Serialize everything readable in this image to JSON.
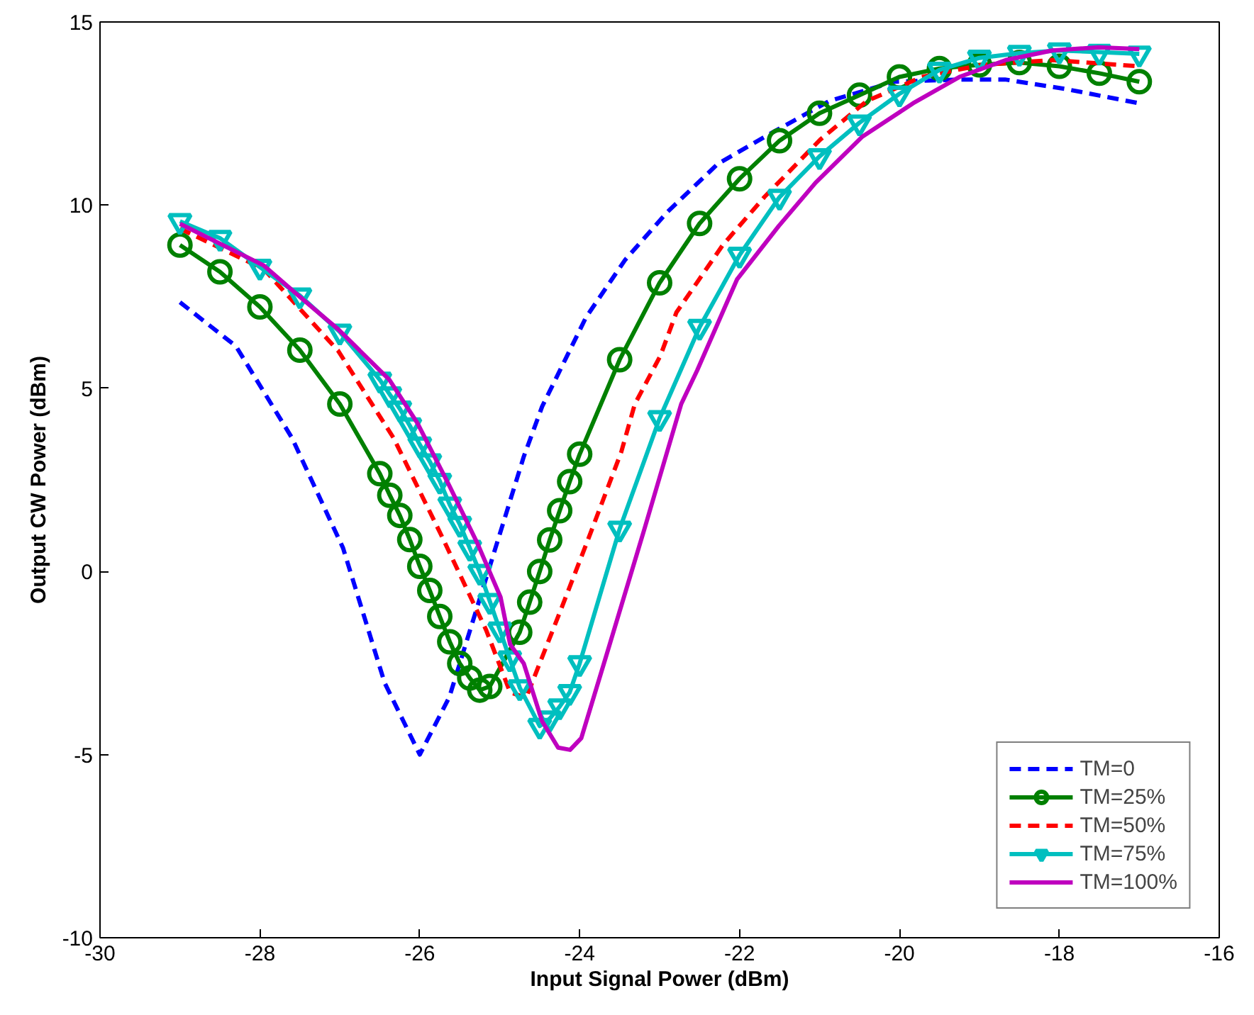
{
  "chart_data": {
    "type": "line",
    "xlabel": "Input Signal Power (dBm)",
    "ylabel": "Output CW Power (dBm)",
    "xlim": [
      -30,
      -16
    ],
    "ylim": [
      -10,
      15
    ],
    "xticks": [
      -30,
      -28,
      -26,
      -24,
      -22,
      -20,
      -18,
      -16
    ],
    "yticks": [
      -10,
      -5,
      0,
      5,
      10,
      15
    ],
    "grid": false,
    "legend": "bottom right",
    "series": [
      {
        "name": "TM=0",
        "color": "#0000ff",
        "line_style": "dashed",
        "marker": "none",
        "x": [
          -29.0,
          -28.3,
          -27.6,
          -26.96,
          -26.44,
          -26.0,
          -25.63,
          -25.11,
          -24.7,
          -24.47,
          -23.92,
          -23.43,
          -22.9,
          -22.27,
          -21.69,
          -20.88,
          -20.06,
          -19.25,
          -18.68,
          -17.92,
          -17.0
        ],
        "values": [
          7.35,
          6.15,
          3.65,
          0.64,
          -3.04,
          -5.0,
          -3.43,
          0.24,
          3.13,
          4.5,
          6.94,
          8.51,
          9.82,
          11.13,
          11.86,
          12.84,
          13.37,
          13.43,
          13.43,
          13.17,
          12.78
        ]
      },
      {
        "name": "TM=25%",
        "color": "#008000",
        "line_style": "solid",
        "marker": "circle",
        "x": [
          -29.0,
          -28.5,
          -28.0,
          -27.5,
          -27.0,
          -26.5,
          -26.375,
          -26.25,
          -26.125,
          -26.0,
          -25.875,
          -25.75,
          -25.625,
          -25.5,
          -25.375,
          -25.25,
          -25.125,
          -24.75,
          -24.625,
          -24.5,
          -24.375,
          -24.25,
          -24.125,
          -24.0,
          -23.5,
          -23.0,
          -22.5,
          -22.0,
          -21.5,
          -21.0,
          -20.5,
          -20.0,
          -19.5,
          -19.0,
          -18.5,
          -18.0,
          -17.5,
          -17.0
        ],
        "values": [
          8.91,
          8.18,
          7.22,
          6.04,
          4.57,
          2.67,
          2.08,
          1.53,
          0.87,
          0.14,
          -0.52,
          -1.23,
          -1.92,
          -2.51,
          -2.91,
          -3.24,
          -3.14,
          -1.66,
          -0.84,
          0.0,
          0.86,
          1.66,
          2.45,
          3.2,
          5.78,
          7.88,
          9.5,
          10.72,
          11.76,
          12.51,
          13.0,
          13.5,
          13.73,
          13.83,
          13.89,
          13.79,
          13.6,
          13.37
        ]
      },
      {
        "name": "TM=50%",
        "color": "#ff0000",
        "line_style": "dashed",
        "marker": "none",
        "x": [
          -29.0,
          -27.95,
          -27.02,
          -26.33,
          -25.74,
          -25.17,
          -24.87,
          -24.67,
          -24.24,
          -23.89,
          -23.48,
          -23.31,
          -22.99,
          -22.79,
          -22.21,
          -21.69,
          -20.99,
          -20.41,
          -19.72,
          -18.96,
          -18.09,
          -17.0
        ],
        "values": [
          9.36,
          8.25,
          6.02,
          3.65,
          1.03,
          -1.6,
          -3.3,
          -3.45,
          -1.07,
          0.9,
          3.26,
          4.57,
          5.89,
          7.07,
          8.91,
          10.22,
          11.79,
          12.84,
          13.5,
          13.83,
          13.96,
          13.79
        ]
      },
      {
        "name": "TM=75%",
        "color": "#00bfbf",
        "line_style": "solid",
        "marker": "triangle",
        "x": [
          -29.0,
          -28.5,
          -28.0,
          -27.5,
          -27.0,
          -26.5,
          -26.375,
          -26.25,
          -26.125,
          -26.0,
          -25.875,
          -25.75,
          -25.625,
          -25.5,
          -25.375,
          -25.25,
          -25.125,
          -25.0,
          -24.875,
          -24.75,
          -24.5,
          -24.375,
          -24.25,
          -24.125,
          -24.0,
          -23.5,
          -23.0,
          -22.5,
          -22.0,
          -21.5,
          -21.0,
          -20.5,
          -20.0,
          -19.5,
          -19.0,
          -18.5,
          -18.0,
          -17.5,
          -17.0
        ],
        "values": [
          9.56,
          9.1,
          8.31,
          7.53,
          6.54,
          5.23,
          4.83,
          4.44,
          3.98,
          3.46,
          3.0,
          2.47,
          1.82,
          1.29,
          0.64,
          -0.02,
          -0.81,
          -1.59,
          -2.38,
          -3.17,
          -4.22,
          -4.02,
          -3.69,
          -3.3,
          -2.51,
          1.16,
          4.18,
          6.67,
          8.64,
          10.22,
          11.33,
          12.25,
          13.04,
          13.69,
          14.02,
          14.15,
          14.22,
          14.18,
          14.13
        ]
      },
      {
        "name": "TM=100%",
        "color": "#bf00bf",
        "line_style": "solid",
        "marker": "none",
        "x": [
          -29.0,
          -27.95,
          -27.48,
          -27.02,
          -26.38,
          -26.03,
          -25.63,
          -25.28,
          -24.99,
          -24.87,
          -24.7,
          -24.47,
          -24.27,
          -24.12,
          -23.98,
          -23.66,
          -23.19,
          -22.73,
          -22.53,
          -22.03,
          -21.51,
          -21.05,
          -20.47,
          -19.83,
          -19.25,
          -18.67,
          -18.09,
          -17.51,
          -17.0
        ],
        "values": [
          9.49,
          8.35,
          7.46,
          6.61,
          5.23,
          4.05,
          2.34,
          0.77,
          -0.7,
          -1.99,
          -2.51,
          -4.09,
          -4.81,
          -4.87,
          -4.55,
          -2.25,
          1.16,
          4.57,
          5.49,
          7.98,
          9.43,
          10.61,
          11.86,
          12.78,
          13.5,
          13.96,
          14.22,
          14.31,
          14.26
        ]
      }
    ]
  }
}
